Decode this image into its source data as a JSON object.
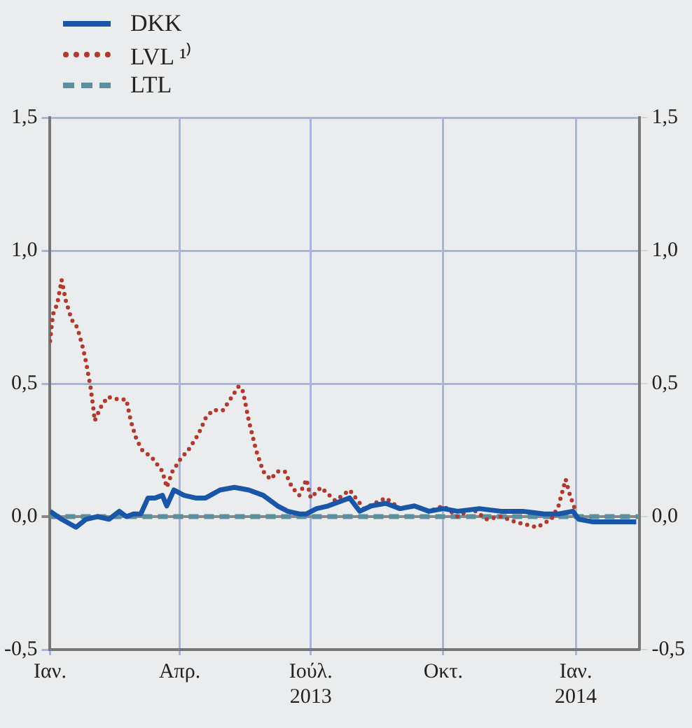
{
  "chart_data": {
    "type": "line",
    "series": [
      {
        "name": "DKK",
        "color": "#1a56a8",
        "line_style": "solid",
        "x": [
          "2013-01-01",
          "2013-01-09",
          "2013-01-19",
          "2013-01-26",
          "2013-02-03",
          "2013-02-11",
          "2013-02-18",
          "2013-02-23",
          "2013-02-28",
          "2013-03-05",
          "2013-03-10",
          "2013-03-15",
          "2013-03-20",
          "2013-03-23",
          "2013-03-28",
          "2013-04-04",
          "2013-04-12",
          "2013-04-19",
          "2013-04-29",
          "2013-05-09",
          "2013-05-19",
          "2013-05-29",
          "2013-06-08",
          "2013-06-15",
          "2013-06-23",
          "2013-06-28",
          "2013-07-05",
          "2013-07-13",
          "2013-07-28",
          "2013-08-04",
          "2013-08-12",
          "2013-08-22",
          "2013-09-01",
          "2013-09-11",
          "2013-09-21",
          "2013-10-01",
          "2013-10-11",
          "2013-10-26",
          "2013-11-10",
          "2013-11-25",
          "2013-12-10",
          "2013-12-20",
          "2013-12-30",
          "2014-01-03",
          "2014-01-13",
          "2014-01-28",
          "2014-02-12"
        ],
        "values": [
          0.02,
          -0.01,
          -0.04,
          -0.01,
          0.0,
          -0.01,
          0.02,
          0.0,
          0.01,
          0.01,
          0.07,
          0.07,
          0.08,
          0.04,
          0.1,
          0.08,
          0.07,
          0.07,
          0.1,
          0.11,
          0.1,
          0.08,
          0.04,
          0.02,
          0.01,
          0.01,
          0.03,
          0.04,
          0.07,
          0.02,
          0.04,
          0.05,
          0.03,
          0.04,
          0.02,
          0.03,
          0.02,
          0.03,
          0.02,
          0.02,
          0.01,
          0.01,
          0.02,
          -0.01,
          -0.02,
          -0.02,
          -0.02
        ]
      },
      {
        "name": "LVL ¹⁾",
        "color": "#b03a2e",
        "line_style": "dotted",
        "x": [
          "2013-01-01",
          "2013-01-03",
          "2013-01-06",
          "2013-01-09",
          "2013-01-12",
          "2013-01-16",
          "2013-01-20",
          "2013-01-24",
          "2013-01-26",
          "2013-01-29",
          "2013-01-31",
          "2013-02-01",
          "2013-02-05",
          "2013-02-10",
          "2013-02-18",
          "2013-02-23",
          "2013-02-26",
          "2013-03-02",
          "2013-03-06",
          "2013-03-13",
          "2013-03-20",
          "2013-03-23",
          "2013-03-27",
          "2013-04-02",
          "2013-04-07",
          "2013-04-14",
          "2013-04-19",
          "2013-04-24",
          "2013-05-01",
          "2013-05-06",
          "2013-05-12",
          "2013-05-15",
          "2013-05-19",
          "2013-05-24",
          "2013-05-29",
          "2013-06-03",
          "2013-06-08",
          "2013-06-13",
          "2013-06-18",
          "2013-06-23",
          "2013-06-28",
          "2013-07-01",
          "2013-07-08",
          "2013-07-18",
          "2013-07-28",
          "2013-08-07",
          "2013-08-22",
          "2013-09-01",
          "2013-09-11",
          "2013-09-21",
          "2013-10-01",
          "2013-10-11",
          "2013-10-21",
          "2013-10-31",
          "2013-11-10",
          "2013-11-20",
          "2013-12-05",
          "2013-12-15",
          "2013-12-20",
          "2013-12-25",
          "2013-12-28",
          "2014-01-01"
        ],
        "values": [
          0.66,
          0.76,
          0.8,
          0.89,
          0.81,
          0.74,
          0.71,
          0.63,
          0.58,
          0.49,
          0.41,
          0.36,
          0.41,
          0.45,
          0.44,
          0.44,
          0.36,
          0.29,
          0.25,
          0.22,
          0.17,
          0.11,
          0.17,
          0.22,
          0.25,
          0.31,
          0.37,
          0.4,
          0.4,
          0.44,
          0.49,
          0.47,
          0.36,
          0.25,
          0.17,
          0.14,
          0.17,
          0.17,
          0.11,
          0.08,
          0.14,
          0.07,
          0.11,
          0.06,
          0.1,
          0.03,
          0.07,
          0.03,
          0.04,
          0.02,
          0.04,
          0.0,
          0.03,
          -0.01,
          0.0,
          -0.02,
          -0.04,
          -0.01,
          0.04,
          0.14,
          0.08,
          0.02
        ]
      },
      {
        "name": "LTL",
        "color": "#5b8fa0",
        "line_style": "dashed",
        "x": [
          "2013-01-01",
          "2014-02-14"
        ],
        "values": [
          0,
          0
        ]
      }
    ],
    "xlim": [
      "2013-01-01",
      "2014-02-14"
    ],
    "xticks": [
      {
        "value": "2013-01-01",
        "label": "Ιαν."
      },
      {
        "value": "2013-04-01",
        "label": "Απρ."
      },
      {
        "value": "2013-07-01",
        "label": "Ιούλ.\n2013"
      },
      {
        "value": "2013-10-01",
        "label": "Οκτ."
      },
      {
        "value": "2014-01-01",
        "label": "Ιαν.\n2014"
      }
    ],
    "ylim": [
      -0.5,
      1.5
    ],
    "yticks": [
      {
        "value": -0.5,
        "label": "-0,5"
      },
      {
        "value": 0,
        "label": "0,0"
      },
      {
        "value": 0.5,
        "label": "0,5"
      },
      {
        "value": 1,
        "label": "1,0"
      },
      {
        "value": 1.5,
        "label": "1,5"
      }
    ],
    "y2lim": [
      -0.5,
      1.5
    ],
    "y2ticks": [
      {
        "value": -0.5,
        "label": "-0,5"
      },
      {
        "value": 0,
        "label": "0,0"
      },
      {
        "value": 0.5,
        "label": "0,5"
      },
      {
        "value": 1,
        "label": "1,0"
      },
      {
        "value": 1.5,
        "label": "1,5"
      }
    ],
    "grid": true,
    "legend": "top left",
    "marker": "none"
  }
}
